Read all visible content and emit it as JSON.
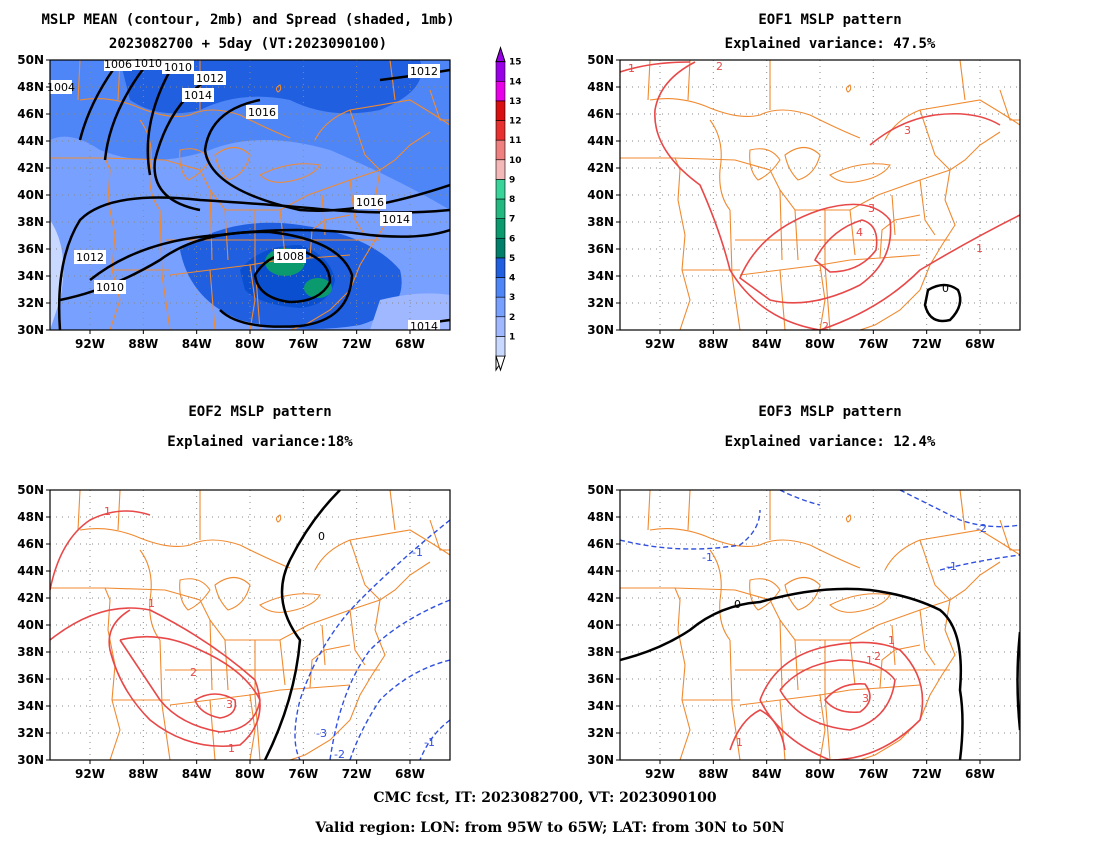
{
  "figure": {
    "footer_line1": "CMC fcst, IT: 2023082700, VT: 2023090100",
    "footer_line2": "Valid region: LON: from 95W to 65W; LAT: from 30N to 50N"
  },
  "axes": {
    "lat_labels": [
      "50N",
      "48N",
      "46N",
      "44N",
      "42N",
      "40N",
      "38N",
      "36N",
      "34N",
      "32N",
      "30N"
    ],
    "lon_labels": [
      "92W",
      "88W",
      "84W",
      "80W",
      "76W",
      "72W",
      "68W"
    ]
  },
  "colorbar": {
    "labels": [
      "1",
      "2",
      "3",
      "4",
      "5",
      "6",
      "7",
      "8",
      "9",
      "10",
      "11",
      "12",
      "13",
      "14",
      "15"
    ],
    "colors": [
      "#c8d8ff",
      "#a0b8ff",
      "#78a0ff",
      "#4f86f7",
      "#1f5fe0",
      "#00806a",
      "#0a9a6e",
      "#22b880",
      "#38d49a",
      "#f4b8b8",
      "#f08080",
      "#e83030",
      "#d81010",
      "#e800e8",
      "#9a00e8"
    ]
  },
  "panels": {
    "mean": {
      "title1": "MSLP MEAN (contour, 2mb) and Spread (shaded, 1mb)",
      "title2": "2023082700 + 5day (VT:2023090100)",
      "contour_labels": [
        "1008",
        "1010",
        "1010",
        "1012",
        "1012",
        "1014",
        "1014",
        "1016",
        "1016",
        "1006",
        "1012",
        "1010",
        "1004",
        "1014"
      ]
    },
    "eof1": {
      "title1": "EOF1 MSLP pattern",
      "title2": "Explained variance: 47.5%",
      "contour_labels": [
        "1",
        "2",
        "3",
        "3",
        "4",
        "1",
        "0",
        "2"
      ]
    },
    "eof2": {
      "title1": "EOF2 MSLP pattern",
      "title2": "Explained variance:18%",
      "contour_labels": [
        "0",
        "1",
        "1",
        "1",
        "2",
        "3",
        "-1",
        "-2",
        "-3",
        "-1"
      ]
    },
    "eof3": {
      "title1": "EOF3 MSLP pattern",
      "title2": "Explained variance: 12.4%",
      "contour_labels": [
        "0",
        "-1",
        "-1",
        "-2",
        "1",
        "2",
        "3",
        "1",
        "1"
      ]
    }
  }
}
